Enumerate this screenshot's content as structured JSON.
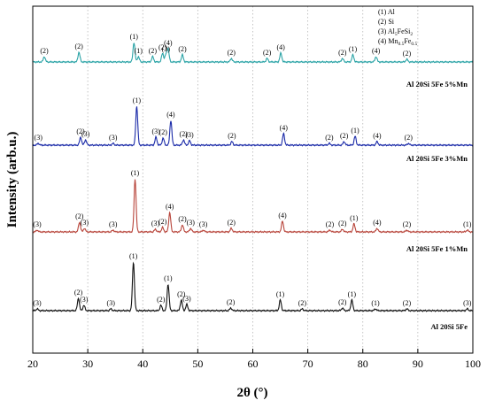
{
  "chart_data": {
    "type": "line",
    "xlabel": "2θ (°)",
    "ylabel": "Intensity (arb.u.)",
    "xlim": [
      20,
      100
    ],
    "x_ticks": [
      20,
      30,
      40,
      50,
      60,
      70,
      80,
      90,
      100
    ],
    "x_tick_labels": [
      "20",
      "30",
      "40",
      "50",
      "60",
      "70",
      "80",
      "90",
      "100"
    ],
    "grid": "vertical dotted",
    "legend_position": "top-right",
    "legend": [
      {
        "tag": "(1)",
        "phase": "Al"
      },
      {
        "tag": "(2)",
        "phase": "Si"
      },
      {
        "tag": "(3)",
        "phase": "Al",
        "sub": "5",
        "tail": "FeSi",
        "sub2": "2"
      },
      {
        "tag": "(4)",
        "phase": "Mn",
        "sub": "0.5",
        "tail": "Fe",
        "sub2": "0.5"
      }
    ],
    "series": [
      {
        "name": "Al 20Si 5Fe 5%Mn",
        "color": "#2aa3a6",
        "peaks": [
          {
            "x": 22.1,
            "h": 6,
            "tag": "(2)"
          },
          {
            "x": 28.4,
            "h": 11,
            "tag": "(2)"
          },
          {
            "x": 38.4,
            "h": 22,
            "tag": "(1)"
          },
          {
            "x": 39.2,
            "h": 6,
            "tag": "(1)"
          },
          {
            "x": 41.8,
            "h": 6,
            "tag": "(2)"
          },
          {
            "x": 43.6,
            "h": 10,
            "tag": "(2)"
          },
          {
            "x": 44.2,
            "h": 8,
            "tag": "(3)"
          },
          {
            "x": 44.6,
            "h": 15,
            "tag": "(4)"
          },
          {
            "x": 47.2,
            "h": 8,
            "tag": "(2)"
          },
          {
            "x": 56.1,
            "h": 4,
            "tag": "(2)"
          },
          {
            "x": 62.6,
            "h": 4,
            "tag": "(2)"
          },
          {
            "x": 65.1,
            "h": 10,
            "tag": "(4)"
          },
          {
            "x": 76.3,
            "h": 4,
            "tag": "(2)"
          },
          {
            "x": 78.2,
            "h": 8,
            "tag": "(1)"
          },
          {
            "x": 82.4,
            "h": 6,
            "tag": "(4)"
          },
          {
            "x": 88.0,
            "h": 3,
            "tag": "(2)"
          }
        ]
      },
      {
        "name": "Al 20Si 5Fe 3%Mn",
        "color": "#1a2aa8",
        "peaks": [
          {
            "x": 21.0,
            "h": 2,
            "tag": "(3)"
          },
          {
            "x": 28.7,
            "h": 9,
            "tag": "(2)"
          },
          {
            "x": 29.6,
            "h": 6,
            "tag": "(3)"
          },
          {
            "x": 34.6,
            "h": 2,
            "tag": "(3)"
          },
          {
            "x": 38.9,
            "h": 44,
            "tag": "(1)"
          },
          {
            "x": 42.4,
            "h": 9,
            "tag": "(3)"
          },
          {
            "x": 43.7,
            "h": 8,
            "tag": "(2)"
          },
          {
            "x": 45.1,
            "h": 28,
            "tag": "(4)"
          },
          {
            "x": 47.4,
            "h": 6,
            "tag": "(2)"
          },
          {
            "x": 48.5,
            "h": 5,
            "tag": "(3)"
          },
          {
            "x": 56.2,
            "h": 4,
            "tag": "(2)"
          },
          {
            "x": 65.6,
            "h": 13,
            "tag": "(4)"
          },
          {
            "x": 73.9,
            "h": 2,
            "tag": "(2)"
          },
          {
            "x": 76.6,
            "h": 4,
            "tag": "(2)"
          },
          {
            "x": 78.6,
            "h": 10,
            "tag": "(1)"
          },
          {
            "x": 82.6,
            "h": 4,
            "tag": "(4)"
          },
          {
            "x": 88.3,
            "h": 2,
            "tag": "(2)"
          }
        ]
      },
      {
        "name": "Al 20Si 5Fe 1%Mn",
        "color": "#b8453b",
        "peaks": [
          {
            "x": 20.8,
            "h": 2,
            "tag": "(3)"
          },
          {
            "x": 28.5,
            "h": 11,
            "tag": "(2)"
          },
          {
            "x": 29.4,
            "h": 4,
            "tag": "(3)"
          },
          {
            "x": 34.6,
            "h": 2,
            "tag": "(3)"
          },
          {
            "x": 38.6,
            "h": 60,
            "tag": "(1)"
          },
          {
            "x": 42.3,
            "h": 3,
            "tag": "(3)"
          },
          {
            "x": 43.6,
            "h": 5,
            "tag": "(2)"
          },
          {
            "x": 44.9,
            "h": 22,
            "tag": "(4)"
          },
          {
            "x": 47.2,
            "h": 8,
            "tag": "(2)"
          },
          {
            "x": 48.7,
            "h": 4,
            "tag": "(3)"
          },
          {
            "x": 51.0,
            "h": 2,
            "tag": "(3)"
          },
          {
            "x": 56.1,
            "h": 4,
            "tag": "(2)"
          },
          {
            "x": 65.4,
            "h": 12,
            "tag": "(4)"
          },
          {
            "x": 74.0,
            "h": 2,
            "tag": "(2)"
          },
          {
            "x": 76.3,
            "h": 3,
            "tag": "(2)"
          },
          {
            "x": 78.4,
            "h": 9,
            "tag": "(1)"
          },
          {
            "x": 82.6,
            "h": 4,
            "tag": "(4)"
          },
          {
            "x": 88.0,
            "h": 2,
            "tag": "(2)"
          },
          {
            "x": 99.0,
            "h": 2,
            "tag": "(1)"
          }
        ]
      },
      {
        "name": "Al 20Si 5Fe",
        "color": "#111111",
        "peaks": [
          {
            "x": 20.8,
            "h": 2,
            "tag": "(3)"
          },
          {
            "x": 28.3,
            "h": 14,
            "tag": "(2)"
          },
          {
            "x": 29.3,
            "h": 6,
            "tag": "(3)"
          },
          {
            "x": 34.2,
            "h": 2,
            "tag": "(3)"
          },
          {
            "x": 38.3,
            "h": 55,
            "tag": "(1)"
          },
          {
            "x": 43.3,
            "h": 6,
            "tag": "(2)"
          },
          {
            "x": 44.6,
            "h": 30,
            "tag": "(1)"
          },
          {
            "x": 47.0,
            "h": 12,
            "tag": "(2)"
          },
          {
            "x": 48.0,
            "h": 7,
            "tag": "(3)"
          },
          {
            "x": 56.0,
            "h": 3,
            "tag": "(2)"
          },
          {
            "x": 65.0,
            "h": 12,
            "tag": "(1)"
          },
          {
            "x": 69.0,
            "h": 2,
            "tag": "(2)"
          },
          {
            "x": 76.3,
            "h": 3,
            "tag": "(2)"
          },
          {
            "x": 78.0,
            "h": 12,
            "tag": "(1)"
          },
          {
            "x": 82.3,
            "h": 2,
            "tag": "(1)"
          },
          {
            "x": 88.0,
            "h": 2,
            "tag": "(2)"
          },
          {
            "x": 99.0,
            "h": 2,
            "tag": "(3)"
          }
        ]
      }
    ]
  }
}
